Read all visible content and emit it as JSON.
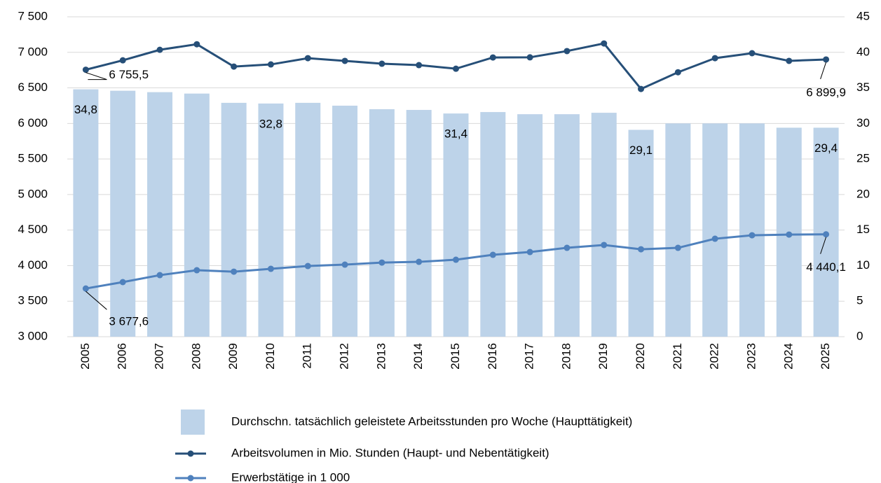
{
  "chart_data": {
    "type": "bar-line",
    "categories": [
      "2005",
      "2006",
      "2007",
      "2008",
      "2009",
      "2010",
      "2011",
      "2012",
      "2013",
      "2014",
      "2015",
      "2016",
      "2017",
      "2018",
      "2019",
      "2020",
      "2021",
      "2022",
      "2023",
      "2024",
      "2025"
    ],
    "ylim": [
      3000,
      7500
    ],
    "yticks": [
      {
        "value": 3000,
        "label": "3 000"
      },
      {
        "value": 3500,
        "label": "3 500"
      },
      {
        "value": 4000,
        "label": "4 000"
      },
      {
        "value": 4500,
        "label": "4 500"
      },
      {
        "value": 5000,
        "label": "5 000"
      },
      {
        "value": 5500,
        "label": "5 500"
      },
      {
        "value": 6000,
        "label": "6 000"
      },
      {
        "value": 6500,
        "label": "6 500"
      },
      {
        "value": 7000,
        "label": "7 000"
      },
      {
        "value": 7500,
        "label": "7 500"
      }
    ],
    "y2lim": [
      0,
      45
    ],
    "y2ticks": [
      0,
      5,
      10,
      15,
      20,
      25,
      30,
      35,
      40,
      45
    ],
    "grid": true,
    "series": [
      {
        "name": "Durchschn. tatsächlich geleistete Arbeitsstunden pro Woche (Haupttätigkeit)",
        "type": "bar",
        "axis": "y2",
        "color": "#bdd3e9",
        "values": [
          34.8,
          34.6,
          34.4,
          34.2,
          32.9,
          32.8,
          32.9,
          32.5,
          32.0,
          31.9,
          31.4,
          31.6,
          31.3,
          31.3,
          31.5,
          29.1,
          30.0,
          30.0,
          30.0,
          29.4,
          29.4
        ],
        "value_labels": [
          "34,8",
          null,
          null,
          null,
          null,
          "32,8",
          null,
          null,
          null,
          null,
          "31,4",
          null,
          null,
          null,
          null,
          "29,1",
          null,
          null,
          null,
          null,
          "29,4"
        ]
      },
      {
        "name": "Arbeitsvolumen in Mio. Stunden (Haupt- und Nebentätigkeit)",
        "type": "line",
        "color": "#264f78",
        "values": [
          6755.5,
          6888,
          7036,
          7114,
          6800,
          6830,
          6918,
          6880,
          6840,
          6820,
          6770,
          6928,
          6930,
          7018,
          7125,
          6485,
          6720,
          6918,
          6988,
          6880,
          6899.9
        ],
        "value_labels": [
          "6 755,5",
          null,
          null,
          null,
          null,
          null,
          null,
          null,
          null,
          null,
          null,
          null,
          null,
          null,
          null,
          null,
          null,
          null,
          null,
          null,
          "6 899,9"
        ]
      },
      {
        "name": "Erwerbstätige in 1 000",
        "type": "line",
        "color": "#4f81bd",
        "values": [
          3677.6,
          3768,
          3866,
          3935,
          3915,
          3955,
          3994,
          4014,
          4043,
          4053,
          4083,
          4152,
          4191,
          4250,
          4290,
          4230,
          4250,
          4378,
          4427,
          4437,
          4440.1
        ],
        "value_labels": [
          "3 677,6",
          null,
          null,
          null,
          null,
          null,
          null,
          null,
          null,
          null,
          null,
          null,
          null,
          null,
          null,
          null,
          null,
          null,
          null,
          null,
          "4 440,1"
        ]
      }
    ]
  }
}
